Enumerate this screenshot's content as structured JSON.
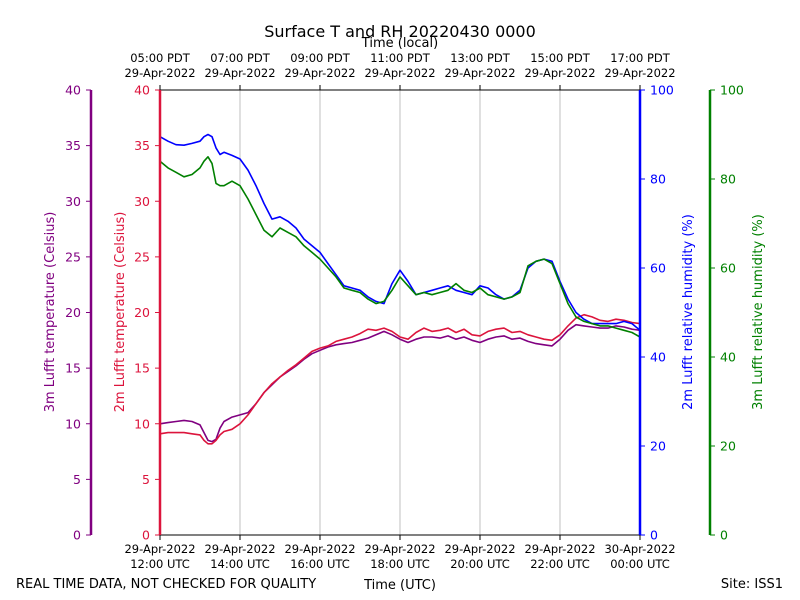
{
  "chart_data": {
    "type": "line",
    "title": "Surface T and RH 20220430 0000",
    "top_axis_label": "Time (local)",
    "bottom_axis_label": "Time (UTC)",
    "footer_left": "REAL TIME DATA, NOT CHECKED FOR QUALITY",
    "footer_right": "Site: ISS1",
    "x_range_hours": [
      12,
      24
    ],
    "bottom_ticks": [
      {
        "x": 12,
        "line1": "29-Apr-2022",
        "line2": "12:00 UTC"
      },
      {
        "x": 14,
        "line1": "29-Apr-2022",
        "line2": "14:00 UTC"
      },
      {
        "x": 16,
        "line1": "29-Apr-2022",
        "line2": "16:00 UTC"
      },
      {
        "x": 18,
        "line1": "29-Apr-2022",
        "line2": "18:00 UTC"
      },
      {
        "x": 20,
        "line1": "29-Apr-2022",
        "line2": "20:00 UTC"
      },
      {
        "x": 22,
        "line1": "29-Apr-2022",
        "line2": "22:00 UTC"
      },
      {
        "x": 24,
        "line1": "30-Apr-2022",
        "line2": "00:00 UTC"
      }
    ],
    "top_ticks": [
      {
        "x": 12,
        "line1": "05:00 PDT",
        "line2": "29-Apr-2022"
      },
      {
        "x": 14,
        "line1": "07:00 PDT",
        "line2": "29-Apr-2022"
      },
      {
        "x": 16,
        "line1": "09:00 PDT",
        "line2": "29-Apr-2022"
      },
      {
        "x": 18,
        "line1": "11:00 PDT",
        "line2": "29-Apr-2022"
      },
      {
        "x": 20,
        "line1": "13:00 PDT",
        "line2": "29-Apr-2022"
      },
      {
        "x": 22,
        "line1": "15:00 PDT",
        "line2": "29-Apr-2022"
      },
      {
        "x": 24,
        "line1": "17:00 PDT",
        "line2": "29-Apr-2022"
      }
    ],
    "axes": {
      "t3m": {
        "label": "3m Lufft temperature (Celsius)",
        "color": "#800080",
        "ylim": [
          0,
          40
        ],
        "ticks": [
          "0",
          "5",
          "10",
          "15",
          "20",
          "25",
          "30",
          "35",
          "40"
        ]
      },
      "t2m": {
        "label": "2m Lufft temperature (Celsius)",
        "color": "#dc143c",
        "ylim": [
          0,
          40
        ],
        "ticks": [
          "0",
          "5",
          "10",
          "15",
          "20",
          "25",
          "30",
          "35",
          "40"
        ]
      },
      "rh2m": {
        "label": "2m Lufft relative humidity (%)",
        "color": "#0000ff",
        "ylim": [
          0,
          100
        ],
        "ticks": [
          "0",
          "20",
          "40",
          "60",
          "80",
          "100"
        ]
      },
      "rh3m": {
        "label": "3m Lufft relative humidity (%)",
        "color": "#008000",
        "ylim": [
          0,
          100
        ],
        "ticks": [
          "0",
          "20",
          "40",
          "60",
          "80",
          "100"
        ]
      }
    },
    "series": [
      {
        "name": "3m Lufft temperature",
        "axis": "t3m",
        "color": "#800080",
        "x": [
          12.0,
          12.2,
          12.4,
          12.6,
          12.8,
          13.0,
          13.1,
          13.2,
          13.3,
          13.4,
          13.5,
          13.6,
          13.8,
          14.0,
          14.2,
          14.4,
          14.6,
          14.8,
          15.0,
          15.2,
          15.4,
          15.6,
          15.8,
          16.0,
          16.2,
          16.4,
          16.6,
          16.8,
          17.0,
          17.2,
          17.4,
          17.6,
          17.8,
          18.0,
          18.2,
          18.4,
          18.6,
          18.8,
          19.0,
          19.2,
          19.4,
          19.6,
          19.8,
          20.0,
          20.2,
          20.4,
          20.6,
          20.8,
          21.0,
          21.2,
          21.4,
          21.6,
          21.8,
          22.0,
          22.2,
          22.4,
          22.6,
          22.8,
          23.0,
          23.2,
          23.4,
          23.6,
          23.8,
          24.0
        ],
        "values": [
          10.0,
          10.1,
          10.2,
          10.3,
          10.2,
          9.9,
          9.2,
          8.5,
          8.4,
          8.6,
          9.6,
          10.2,
          10.6,
          10.8,
          11.0,
          11.8,
          12.8,
          13.5,
          14.2,
          14.7,
          15.2,
          15.8,
          16.3,
          16.6,
          16.9,
          17.1,
          17.2,
          17.3,
          17.5,
          17.7,
          18.0,
          18.3,
          18.0,
          17.6,
          17.3,
          17.6,
          17.8,
          17.8,
          17.7,
          17.9,
          17.6,
          17.8,
          17.5,
          17.3,
          17.6,
          17.8,
          17.9,
          17.6,
          17.7,
          17.4,
          17.2,
          17.1,
          17.0,
          17.6,
          18.4,
          18.9,
          18.8,
          18.7,
          18.6,
          18.6,
          18.8,
          18.7,
          18.5,
          18.4
        ]
      },
      {
        "name": "2m Lufft temperature",
        "axis": "t2m",
        "color": "#dc143c",
        "x": [
          12.0,
          12.2,
          12.4,
          12.6,
          12.8,
          13.0,
          13.1,
          13.2,
          13.3,
          13.4,
          13.5,
          13.6,
          13.8,
          14.0,
          14.2,
          14.4,
          14.6,
          14.8,
          15.0,
          15.2,
          15.4,
          15.6,
          15.8,
          16.0,
          16.2,
          16.4,
          16.6,
          16.8,
          17.0,
          17.2,
          17.4,
          17.6,
          17.8,
          18.0,
          18.2,
          18.4,
          18.6,
          18.8,
          19.0,
          19.2,
          19.4,
          19.6,
          19.8,
          20.0,
          20.2,
          20.4,
          20.6,
          20.8,
          21.0,
          21.2,
          21.4,
          21.6,
          21.8,
          22.0,
          22.2,
          22.4,
          22.6,
          22.8,
          23.0,
          23.2,
          23.4,
          23.6,
          23.8,
          24.0
        ],
        "values": [
          9.1,
          9.2,
          9.2,
          9.2,
          9.1,
          9.0,
          8.5,
          8.2,
          8.2,
          8.5,
          9.0,
          9.3,
          9.5,
          10.0,
          10.8,
          11.8,
          12.8,
          13.6,
          14.2,
          14.8,
          15.3,
          15.9,
          16.5,
          16.8,
          17.0,
          17.4,
          17.6,
          17.8,
          18.1,
          18.5,
          18.4,
          18.6,
          18.3,
          17.8,
          17.6,
          18.2,
          18.6,
          18.3,
          18.4,
          18.6,
          18.2,
          18.5,
          18.0,
          17.9,
          18.3,
          18.5,
          18.6,
          18.2,
          18.3,
          18.0,
          17.8,
          17.6,
          17.5,
          18.0,
          18.8,
          19.5,
          19.8,
          19.6,
          19.3,
          19.2,
          19.4,
          19.3,
          19.1,
          19.0
        ]
      },
      {
        "name": "2m Lufft relative humidity",
        "axis": "rh2m",
        "color": "#0000ff",
        "x": [
          12.0,
          12.2,
          12.4,
          12.6,
          12.8,
          13.0,
          13.1,
          13.2,
          13.3,
          13.4,
          13.5,
          13.6,
          13.8,
          14.0,
          14.2,
          14.4,
          14.6,
          14.8,
          15.0,
          15.2,
          15.4,
          15.6,
          15.8,
          16.0,
          16.2,
          16.4,
          16.6,
          16.8,
          17.0,
          17.2,
          17.4,
          17.6,
          17.8,
          18.0,
          18.2,
          18.4,
          18.6,
          18.8,
          19.0,
          19.2,
          19.4,
          19.6,
          19.8,
          20.0,
          20.2,
          20.4,
          20.6,
          20.8,
          21.0,
          21.2,
          21.4,
          21.6,
          21.8,
          22.0,
          22.2,
          22.4,
          22.6,
          22.8,
          23.0,
          23.2,
          23.4,
          23.6,
          23.8,
          24.0
        ],
        "values": [
          89.5,
          88.5,
          87.7,
          87.6,
          88.0,
          88.5,
          89.5,
          90.0,
          89.5,
          87.0,
          85.5,
          86.0,
          85.3,
          84.5,
          82.0,
          78.5,
          74.5,
          71.0,
          71.5,
          70.5,
          69.0,
          66.5,
          65.0,
          63.5,
          61.0,
          58.5,
          56.0,
          55.5,
          55.0,
          53.5,
          52.5,
          52.0,
          56.5,
          59.5,
          57.0,
          54.0,
          54.5,
          55.0,
          55.5,
          56.0,
          55.0,
          54.5,
          54.0,
          56.0,
          55.5,
          54.0,
          53.0,
          53.5,
          55.0,
          60.0,
          61.5,
          62.0,
          61.5,
          57.0,
          53.0,
          50.0,
          48.5,
          47.5,
          47.5,
          47.5,
          47.5,
          48.0,
          47.5,
          46.0
        ]
      },
      {
        "name": "3m Lufft relative humidity",
        "axis": "rh3m",
        "color": "#008000",
        "x": [
          12.0,
          12.2,
          12.4,
          12.6,
          12.8,
          13.0,
          13.1,
          13.2,
          13.3,
          13.4,
          13.5,
          13.6,
          13.8,
          14.0,
          14.2,
          14.4,
          14.6,
          14.8,
          15.0,
          15.2,
          15.4,
          15.6,
          15.8,
          16.0,
          16.2,
          16.4,
          16.6,
          16.8,
          17.0,
          17.2,
          17.4,
          17.6,
          17.8,
          18.0,
          18.2,
          18.4,
          18.6,
          18.8,
          19.0,
          19.2,
          19.4,
          19.6,
          19.8,
          20.0,
          20.2,
          20.4,
          20.6,
          20.8,
          21.0,
          21.2,
          21.4,
          21.6,
          21.8,
          22.0,
          22.2,
          22.4,
          22.6,
          22.8,
          23.0,
          23.2,
          23.4,
          23.6,
          23.8,
          24.0
        ],
        "values": [
          84.0,
          82.5,
          81.5,
          80.5,
          81.0,
          82.5,
          84.0,
          85.0,
          83.5,
          79.0,
          78.5,
          78.5,
          79.5,
          78.5,
          75.5,
          72.0,
          68.5,
          67.0,
          69.0,
          68.0,
          67.0,
          65.0,
          63.5,
          62.0,
          60.0,
          58.0,
          55.5,
          55.0,
          54.5,
          53.0,
          52.0,
          52.5,
          55.0,
          58.0,
          56.0,
          54.0,
          54.5,
          54.0,
          54.5,
          55.0,
          56.5,
          55.0,
          54.5,
          55.5,
          54.0,
          53.5,
          53.0,
          53.5,
          54.5,
          60.5,
          61.5,
          62.0,
          61.0,
          56.5,
          52.0,
          49.0,
          48.0,
          47.5,
          47.0,
          47.0,
          46.5,
          46.0,
          45.5,
          44.5
        ]
      }
    ]
  }
}
